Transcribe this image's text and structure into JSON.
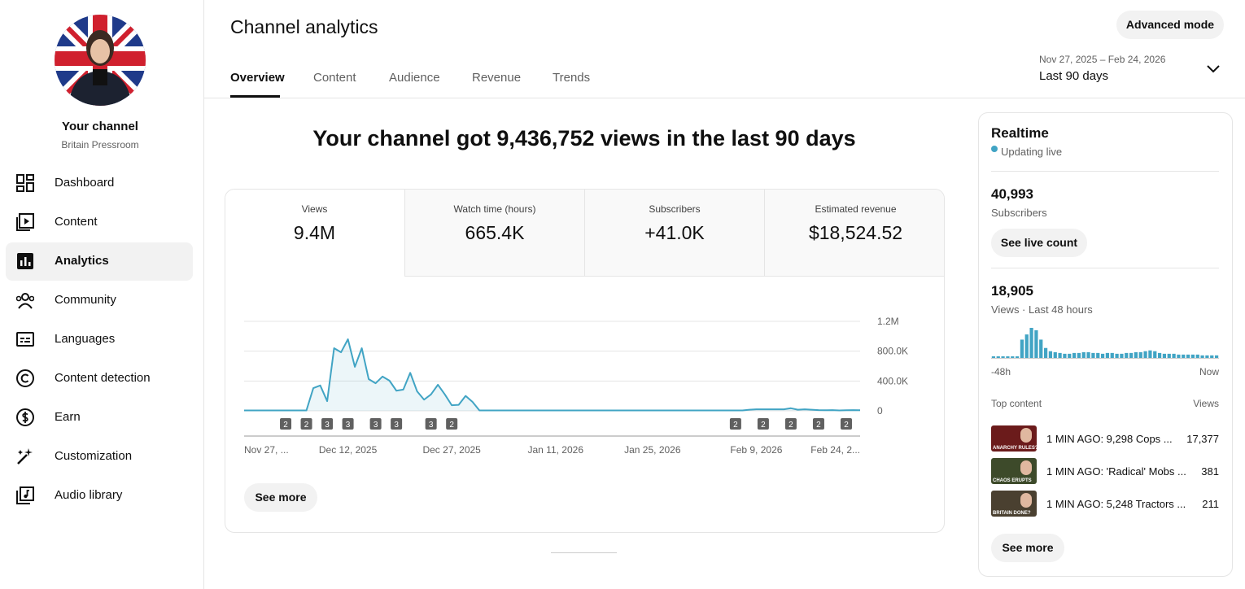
{
  "sidebar": {
    "channel_label": "Your channel",
    "channel_name": "Britain Pressroom",
    "nav": [
      {
        "label": "Dashboard"
      },
      {
        "label": "Content"
      },
      {
        "label": "Analytics",
        "selected": true
      },
      {
        "label": "Community"
      },
      {
        "label": "Languages"
      },
      {
        "label": "Content detection"
      },
      {
        "label": "Earn"
      },
      {
        "label": "Customization"
      },
      {
        "label": "Audio library"
      }
    ]
  },
  "header": {
    "title": "Channel analytics",
    "tabs": [
      {
        "label": "Overview",
        "selected": true
      },
      {
        "label": "Content"
      },
      {
        "label": "Audience"
      },
      {
        "label": "Revenue"
      },
      {
        "label": "Trends"
      }
    ],
    "advanced_button": "Advanced mode",
    "date_range": "Nov 27, 2025 – Feb 24, 2026",
    "period": "Last 90 days"
  },
  "summary": "Your channel got 9,436,752 views in the last 90 days",
  "metrics": [
    {
      "label": "Views",
      "value": "9.4M",
      "selected": true
    },
    {
      "label": "Watch time (hours)",
      "value": "665.4K"
    },
    {
      "label": "Subscribers",
      "value": "+41.0K"
    },
    {
      "label": "Estimated revenue",
      "value": "$18,524.52"
    }
  ],
  "see_more": "See more",
  "chart_data": [
    {
      "type": "line",
      "color": "#41a4c4",
      "categories": [
        "Nov 27, ...",
        null,
        null,
        null,
        null,
        null,
        null,
        null,
        null,
        null,
        null,
        null,
        null,
        null,
        null,
        "Dec 12, 2025",
        null,
        null,
        null,
        null,
        null,
        null,
        null,
        null,
        null,
        null,
        null,
        null,
        null,
        null,
        "Dec 27, 2025",
        null,
        null,
        null,
        null,
        null,
        null,
        null,
        null,
        null,
        null,
        null,
        null,
        null,
        null,
        "Jan 11, 2026",
        null,
        null,
        null,
        null,
        null,
        null,
        null,
        null,
        null,
        null,
        null,
        null,
        null,
        "Jan 25, 2026",
        null,
        null,
        null,
        null,
        null,
        null,
        null,
        null,
        null,
        null,
        null,
        null,
        null,
        null,
        "Feb 9, 2026",
        null,
        null,
        null,
        null,
        null,
        null,
        null,
        null,
        null,
        null,
        null,
        null,
        null,
        null,
        "Feb 24, 2..."
      ],
      "values": [
        5000,
        5000,
        5000,
        5000,
        5000,
        5000,
        5000,
        5000,
        5000,
        5000,
        305000,
        340000,
        130000,
        840000,
        785000,
        960000,
        590000,
        840000,
        425000,
        370000,
        460000,
        405000,
        270000,
        285000,
        510000,
        260000,
        150000,
        220000,
        350000,
        220000,
        75000,
        80000,
        200000,
        120000,
        5000,
        5000,
        5000,
        5000,
        5000,
        5000,
        5000,
        5000,
        5000,
        5000,
        5000,
        5000,
        5000,
        5000,
        5000,
        5000,
        5000,
        5000,
        5000,
        5000,
        5000,
        5000,
        5000,
        5000,
        5000,
        5000,
        5000,
        5000,
        5000,
        5000,
        5000,
        5000,
        5000,
        5000,
        5000,
        5000,
        5000,
        5000,
        5000,
        15000,
        20000,
        20000,
        20000,
        20000,
        20000,
        35000,
        15000,
        20000,
        15000,
        10000,
        8000,
        10000,
        6000,
        8000,
        10000,
        8000
      ],
      "ylim": [
        0,
        1200000
      ],
      "yticks": [
        0,
        {
          "value": 400000,
          "label": "400.0K"
        },
        {
          "value": 800000,
          "label": "800.0K"
        },
        {
          "value": 1200000,
          "label": "1.2M"
        }
      ],
      "grid": true,
      "annotations": [
        {
          "index": 6,
          "label": 2
        },
        {
          "index": 9,
          "label": 2
        },
        {
          "index": 12,
          "label": 3
        },
        {
          "index": 15,
          "label": 3
        },
        {
          "index": 19,
          "label": 3
        },
        {
          "index": 22,
          "label": 3
        },
        {
          "index": 27,
          "label": 3
        },
        {
          "index": 30,
          "label": 2
        },
        {
          "index": 71,
          "label": 2
        },
        {
          "index": 75,
          "label": 2
        },
        {
          "index": 79,
          "label": 2
        },
        {
          "index": 83,
          "label": 2
        },
        {
          "index": 87,
          "label": 2
        }
      ]
    },
    {
      "type": "bar",
      "color": "#41a4c4",
      "categories": [
        "-48h",
        null,
        null,
        null,
        null,
        null,
        null,
        null,
        null,
        null,
        null,
        null,
        null,
        null,
        null,
        null,
        null,
        null,
        null,
        null,
        null,
        null,
        null,
        null,
        null,
        null,
        null,
        null,
        null,
        null,
        null,
        null,
        null,
        null,
        null,
        null,
        null,
        null,
        null,
        null,
        null,
        null,
        null,
        null,
        null,
        null,
        null,
        "Now"
      ],
      "values": [
        100,
        100,
        100,
        100,
        100,
        100,
        1140,
        1460,
        1870,
        1720,
        1140,
        620,
        420,
        360,
        310,
        260,
        260,
        310,
        310,
        360,
        360,
        310,
        310,
        260,
        310,
        310,
        260,
        260,
        310,
        310,
        360,
        360,
        420,
        470,
        420,
        310,
        260,
        260,
        260,
        210,
        210,
        210,
        210,
        210,
        160,
        160,
        160,
        160
      ]
    }
  ],
  "realtime": {
    "title": "Realtime",
    "status": "Updating live",
    "subscribers": {
      "value": "40,993",
      "label": "Subscribers"
    },
    "live_count_button": "See live count",
    "views": {
      "value": "18,905",
      "label": "Views · Last 48 hours"
    },
    "top_content": {
      "title": "Top content",
      "views_label": "Views",
      "items": [
        {
          "thumbnail_caption": "ANARCHY RULES?",
          "title": "1 MIN AGO: 9,298 Cops ...",
          "views": "17,377"
        },
        {
          "thumbnail_caption": "CHAOS ERUPTS",
          "title": "1 MIN AGO: 'Radical' Mobs ...",
          "views": "381"
        },
        {
          "thumbnail_caption": "BRITAIN DONE?",
          "title": "1 MIN AGO: 5,248 Tractors ...",
          "views": "211"
        }
      ]
    },
    "see_more": "See more"
  }
}
